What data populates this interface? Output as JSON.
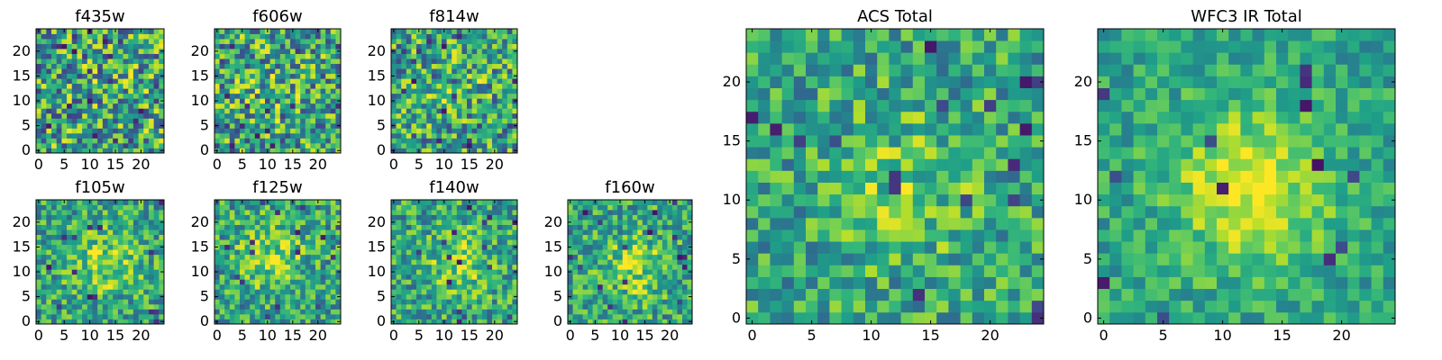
{
  "chart_data": [
    {
      "type": "heatmap",
      "title": "f435w",
      "xticks": [
        "0",
        "5",
        "10",
        "15",
        "20"
      ],
      "yticks": [
        "0",
        "5",
        "10",
        "15",
        "20"
      ],
      "grid_size": [
        25,
        25
      ],
      "seed": 11,
      "centre_strength": 0.05,
      "noise": 0.5,
      "colormap": "viridis"
    },
    {
      "type": "heatmap",
      "title": "f606w",
      "xticks": [
        "0",
        "5",
        "10",
        "15",
        "20"
      ],
      "yticks": [
        "0",
        "5",
        "10",
        "15",
        "20"
      ],
      "grid_size": [
        25,
        25
      ],
      "seed": 23,
      "centre_strength": 0.1,
      "noise": 0.48,
      "colormap": "viridis"
    },
    {
      "type": "heatmap",
      "title": "f814w",
      "xticks": [
        "0",
        "5",
        "10",
        "15",
        "20"
      ],
      "yticks": [
        "0",
        "5",
        "10",
        "15",
        "20"
      ],
      "grid_size": [
        25,
        25
      ],
      "seed": 37,
      "centre_strength": 0.15,
      "noise": 0.45,
      "colormap": "viridis"
    },
    {
      "type": "heatmap",
      "title": "f105w",
      "xticks": [
        "0",
        "5",
        "10",
        "15",
        "20"
      ],
      "yticks": [
        "0",
        "5",
        "10",
        "15",
        "20"
      ],
      "grid_size": [
        25,
        25
      ],
      "seed": 41,
      "centre_strength": 0.35,
      "noise": 0.35,
      "colormap": "viridis"
    },
    {
      "type": "heatmap",
      "title": "f125w",
      "xticks": [
        "0",
        "5",
        "10",
        "15",
        "20"
      ],
      "yticks": [
        "0",
        "5",
        "10",
        "15",
        "20"
      ],
      "grid_size": [
        25,
        25
      ],
      "seed": 53,
      "centre_strength": 0.35,
      "noise": 0.35,
      "colormap": "viridis"
    },
    {
      "type": "heatmap",
      "title": "f140w",
      "xticks": [
        "0",
        "5",
        "10",
        "15",
        "20"
      ],
      "yticks": [
        "0",
        "5",
        "10",
        "15",
        "20"
      ],
      "grid_size": [
        25,
        25
      ],
      "seed": 67,
      "centre_strength": 0.35,
      "noise": 0.35,
      "colormap": "viridis"
    },
    {
      "type": "heatmap",
      "title": "f160w",
      "xticks": [
        "0",
        "5",
        "10",
        "15",
        "20"
      ],
      "yticks": [
        "0",
        "5",
        "10",
        "15",
        "20"
      ],
      "grid_size": [
        25,
        25
      ],
      "seed": 71,
      "centre_strength": 0.35,
      "noise": 0.35,
      "colormap": "viridis"
    },
    {
      "type": "heatmap",
      "title": "ACS Total",
      "xticks": [
        "0",
        "5",
        "10",
        "15",
        "20"
      ],
      "yticks": [
        "0",
        "5",
        "10",
        "15",
        "20"
      ],
      "grid_size": [
        25,
        25
      ],
      "seed": 83,
      "centre_strength": 0.25,
      "noise": 0.33,
      "colormap": "viridis"
    },
    {
      "type": "heatmap",
      "title": "WFC3 IR Total",
      "xticks": [
        "0",
        "5",
        "10",
        "15",
        "20"
      ],
      "yticks": [
        "0",
        "5",
        "10",
        "15",
        "20"
      ],
      "grid_size": [
        25,
        25
      ],
      "seed": 97,
      "centre_strength": 0.55,
      "noise": 0.22,
      "colormap": "viridis"
    }
  ]
}
